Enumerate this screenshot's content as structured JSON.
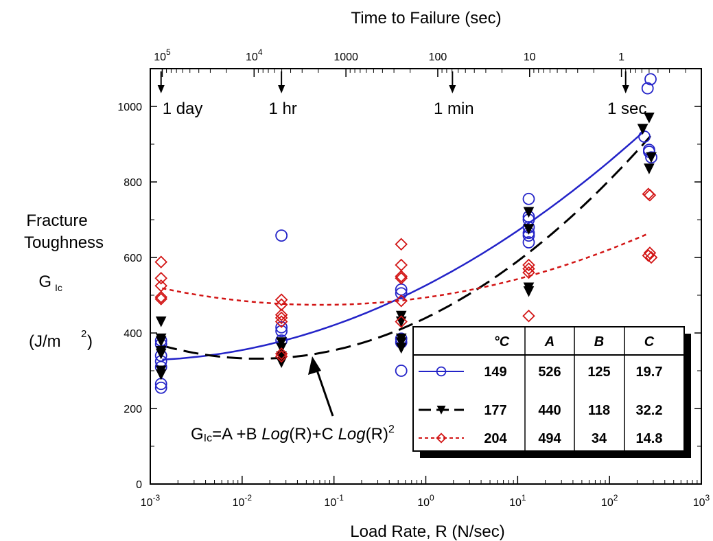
{
  "chart_data": {
    "type": "scatter",
    "title": "Time to Failure  (sec)",
    "xlabel": "Load Rate,  R  (N/sec)",
    "ylabel": [
      "Fracture",
      "Toughness",
      "G",
      "Ic",
      "(J/m",
      "2",
      ")"
    ],
    "x_scale": "log",
    "xlim": [
      0.001,
      1000
    ],
    "ylim": [
      0,
      1100
    ],
    "x_ticks": [
      {
        "v": 0.001,
        "b": "10",
        "e": "-3"
      },
      {
        "v": 0.01,
        "b": "10",
        "e": "-2"
      },
      {
        "v": 0.1,
        "b": "10",
        "e": "-1"
      },
      {
        "v": 1,
        "b": "10",
        "e": "0"
      },
      {
        "v": 10,
        "b": "10",
        "e": "1"
      },
      {
        "v": 100,
        "b": "10",
        "e": "2"
      },
      {
        "v": 1000,
        "b": "10",
        "e": "3"
      }
    ],
    "y_ticks": [
      0,
      200,
      400,
      600,
      800,
      1000
    ],
    "top_axis_ticks": [
      {
        "x": 0.00135,
        "b": "10",
        "e": "5"
      },
      {
        "x": 0.0135,
        "b": "10",
        "e": "4"
      },
      {
        "x": 0.135,
        "b": "1000",
        "e": ""
      },
      {
        "x": 1.35,
        "b": "100",
        "e": ""
      },
      {
        "x": 13.5,
        "b": "10",
        "e": ""
      },
      {
        "x": 135,
        "b": "1",
        "e": ""
      }
    ],
    "time_markers": [
      {
        "label": "1 day",
        "x": 0.00131
      },
      {
        "label": "1 hr",
        "x": 0.0268
      },
      {
        "label": "1 min",
        "x": 1.95
      },
      {
        "label": "1 sec",
        "x": 150
      }
    ],
    "equation": {
      "lhs": "G",
      "sub": "Ic",
      "mid1": "=A +B ",
      "log1": "Log",
      "mid2": "(R)+C ",
      "log2": "Log",
      "mid3": "(R)",
      "sup": "2"
    },
    "table": {
      "headers": [
        "°C",
        "A",
        "B",
        "C"
      ],
      "rows": [
        {
          "temp": "149",
          "A": "526",
          "B": "125",
          "C": "19.7",
          "color": "#2323c8"
        },
        {
          "temp": "177",
          "A": "440",
          "B": "118",
          "C": "32.2",
          "color": "#000000"
        },
        {
          "temp": "204",
          "A": "494",
          "B": "34",
          "C": "14.8",
          "color": "#d21414"
        }
      ]
    },
    "series": [
      {
        "name": "149",
        "color": "#2323c8",
        "marker": "circle",
        "A": 526,
        "B": 125,
        "C": 19.7,
        "curve_x_range": [
          0.00135,
          240
        ],
        "points": [
          [
            0.00131,
            380
          ],
          [
            0.00131,
            370
          ],
          [
            0.00131,
            340
          ],
          [
            0.00131,
            325
          ],
          [
            0.00131,
            310
          ],
          [
            0.00131,
            265
          ],
          [
            0.00131,
            255
          ],
          [
            0.0268,
            658
          ],
          [
            0.0268,
            415
          ],
          [
            0.0268,
            405
          ],
          [
            0.0268,
            380
          ],
          [
            0.54,
            515
          ],
          [
            0.54,
            505
          ],
          [
            0.54,
            385
          ],
          [
            0.54,
            375
          ],
          [
            0.54,
            300
          ],
          [
            13.2,
            755
          ],
          [
            13.2,
            708
          ],
          [
            13.2,
            700
          ],
          [
            13.2,
            680
          ],
          [
            13.2,
            665
          ],
          [
            13.2,
            658
          ],
          [
            13.2,
            640
          ],
          [
            240,
            920
          ],
          [
            260,
            1048
          ],
          [
            280,
            1072
          ],
          [
            270,
            885
          ],
          [
            285,
            865
          ],
          [
            270,
            880
          ]
        ]
      },
      {
        "name": "177",
        "color": "#000000",
        "marker": "triangle-down",
        "A": 440,
        "B": 118,
        "C": 32.2,
        "curve_x_range": [
          0.00135,
          280
        ],
        "points": [
          [
            0.00131,
            430
          ],
          [
            0.00131,
            385
          ],
          [
            0.00131,
            378
          ],
          [
            0.00131,
            352
          ],
          [
            0.00131,
            345
          ],
          [
            0.00131,
            300
          ],
          [
            0.00131,
            290
          ],
          [
            0.0268,
            375
          ],
          [
            0.0268,
            360
          ],
          [
            0.0268,
            338
          ],
          [
            0.0268,
            322
          ],
          [
            0.54,
            445
          ],
          [
            0.54,
            430
          ],
          [
            0.54,
            385
          ],
          [
            0.54,
            375
          ],
          [
            0.54,
            360
          ],
          [
            13.2,
            720
          ],
          [
            13.2,
            675
          ],
          [
            13.2,
            520
          ],
          [
            13.2,
            510
          ],
          [
            230,
            940
          ],
          [
            270,
            970
          ],
          [
            285,
            865
          ],
          [
            270,
            835
          ]
        ]
      },
      {
        "name": "204",
        "color": "#d21414",
        "marker": "diamond",
        "A": 494,
        "B": 34,
        "C": 14.8,
        "curve_x_range": [
          0.00135,
          260
        ],
        "points": [
          [
            0.00131,
            588
          ],
          [
            0.00131,
            545
          ],
          [
            0.00131,
            525
          ],
          [
            0.00131,
            495
          ],
          [
            0.00131,
            490
          ],
          [
            0.0268,
            488
          ],
          [
            0.0268,
            475
          ],
          [
            0.0268,
            448
          ],
          [
            0.0268,
            440
          ],
          [
            0.0268,
            430
          ],
          [
            0.0268,
            345
          ],
          [
            0.0268,
            338
          ],
          [
            0.54,
            635
          ],
          [
            0.54,
            580
          ],
          [
            0.54,
            550
          ],
          [
            0.54,
            545
          ],
          [
            0.54,
            485
          ],
          [
            0.54,
            430
          ],
          [
            13.2,
            580
          ],
          [
            13.2,
            570
          ],
          [
            13.2,
            560
          ],
          [
            13.2,
            445
          ],
          [
            265,
            768
          ],
          [
            275,
            765
          ],
          [
            275,
            612
          ],
          [
            265,
            605
          ],
          [
            285,
            600
          ]
        ]
      }
    ]
  }
}
